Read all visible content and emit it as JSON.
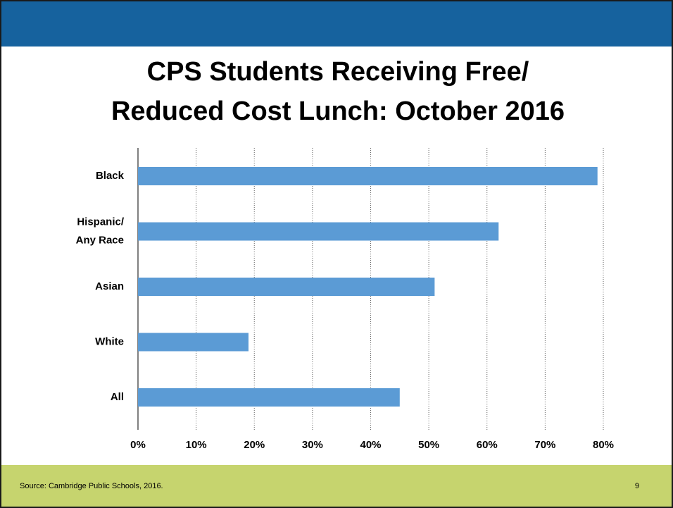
{
  "chart_data": {
    "type": "hbar",
    "title": "CPS Students Receiving Free/ Reduced Cost Lunch: October 2016",
    "categories": [
      "Black",
      "Hispanic/ Any Race",
      "Asian",
      "White",
      "All"
    ],
    "values": [
      79,
      62,
      51,
      19,
      45
    ],
    "color": "#5b9bd5",
    "xlim": [
      0,
      80
    ],
    "xticks": [
      {
        "value": 0,
        "label": "0%"
      },
      {
        "value": 10,
        "label": "10%"
      },
      {
        "value": 20,
        "label": "20%"
      },
      {
        "value": 30,
        "label": "30%"
      },
      {
        "value": 40,
        "label": "40%"
      },
      {
        "value": 50,
        "label": "50%"
      },
      {
        "value": 60,
        "label": "60%"
      },
      {
        "value": 70,
        "label": "70%"
      },
      {
        "value": 80,
        "label": "80%"
      }
    ],
    "grid": true
  },
  "footer": {
    "source": "Source: Cambridge Public Schools, 2016.",
    "page": "9"
  }
}
